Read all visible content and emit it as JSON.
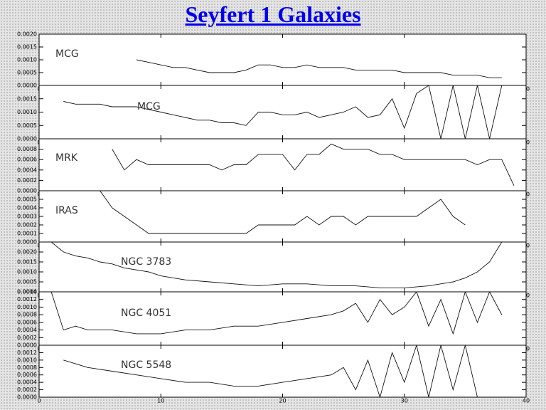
{
  "title": "Seyfert 1 Galaxies",
  "chart_data": [
    {
      "type": "line",
      "label": "MCG",
      "xlim": [
        0,
        40
      ],
      "xticks": [
        0,
        10,
        20,
        30,
        40
      ],
      "ylim": [
        0,
        0.002
      ],
      "yticks": [
        {
          "value": 0,
          "label": "0.0000"
        },
        {
          "value": 0.0005,
          "label": "0.0005"
        },
        {
          "value": 0.001,
          "label": "0.0010"
        },
        {
          "value": 0.0015,
          "label": "0.0015"
        },
        {
          "value": 0.002,
          "label": "0.0020"
        }
      ],
      "x": [
        8,
        9,
        10,
        11,
        12,
        13,
        14,
        15,
        16,
        17,
        18,
        19,
        20,
        21,
        22,
        23,
        24,
        25,
        26,
        27,
        28,
        29,
        30,
        31,
        32,
        33,
        34,
        35,
        36,
        37,
        38
      ],
      "values": [
        0.001,
        0.0009,
        0.0008,
        0.0007,
        0.0007,
        0.0006,
        0.0005,
        0.0005,
        0.0005,
        0.0006,
        0.0008,
        0.0008,
        0.0007,
        0.0007,
        0.0008,
        0.0007,
        0.0007,
        0.0007,
        0.0006,
        0.0006,
        0.0006,
        0.0006,
        0.0005,
        0.0005,
        0.0005,
        0.0005,
        0.0004,
        0.0004,
        0.0004,
        0.0003,
        0.0003
      ]
    },
    {
      "type": "line",
      "label": "MCG",
      "xlim": [
        0,
        40
      ],
      "xticks": [
        0,
        10,
        20,
        30,
        40
      ],
      "ylim": [
        0,
        0.002
      ],
      "yticks": [
        {
          "value": 0,
          "label": "0.0000"
        },
        {
          "value": 0.0005,
          "label": "0.0005"
        },
        {
          "value": 0.001,
          "label": "0.0010"
        },
        {
          "value": 0.0015,
          "label": "0.0015"
        }
      ],
      "x": [
        2,
        3,
        4,
        5,
        6,
        7,
        8,
        9,
        10,
        11,
        12,
        13,
        14,
        15,
        16,
        17,
        18,
        19,
        20,
        21,
        22,
        23,
        24,
        25,
        26,
        27,
        28,
        29,
        30,
        31,
        32,
        33,
        34,
        35,
        36,
        37,
        38
      ],
      "values": [
        0.0014,
        0.0013,
        0.0013,
        0.0013,
        0.0012,
        0.0012,
        0.0012,
        0.0011,
        0.001,
        0.0009,
        0.0008,
        0.0007,
        0.0007,
        0.0006,
        0.0006,
        0.0005,
        0.001,
        0.001,
        0.0009,
        0.0009,
        0.001,
        0.0008,
        0.0009,
        0.001,
        0.0012,
        0.0008,
        0.0009,
        0.0015,
        0.0004,
        0.0017,
        0.002,
        0,
        0.002,
        0,
        0.002,
        0,
        0.002
      ]
    },
    {
      "type": "line",
      "label": "MRK",
      "xlim": [
        0,
        40
      ],
      "xticks": [
        0,
        10,
        20,
        30,
        40
      ],
      "ylim": [
        0,
        0.001
      ],
      "yticks": [
        {
          "value": 0,
          "label": "0.0000"
        },
        {
          "value": 0.0002,
          "label": "0.0002"
        },
        {
          "value": 0.0004,
          "label": "0.0004"
        },
        {
          "value": 0.0006,
          "label": "0.0006"
        },
        {
          "value": 0.0008,
          "label": "0.0008"
        }
      ],
      "x": [
        6,
        7,
        8,
        9,
        10,
        11,
        12,
        13,
        14,
        15,
        16,
        17,
        18,
        19,
        20,
        21,
        22,
        23,
        24,
        25,
        26,
        27,
        28,
        29,
        30,
        31,
        32,
        33,
        34,
        35,
        36,
        37,
        38,
        39
      ],
      "values": [
        0.0008,
        0.0004,
        0.0006,
        0.0005,
        0.0005,
        0.0005,
        0.0005,
        0.0005,
        0.0005,
        0.0004,
        0.0005,
        0.0005,
        0.0007,
        0.0007,
        0.0007,
        0.0004,
        0.0007,
        0.0007,
        0.0009,
        0.0008,
        0.0008,
        0.0008,
        0.0007,
        0.0007,
        0.0006,
        0.0006,
        0.0006,
        0.0006,
        0.0006,
        0.0006,
        0.0005,
        0.0006,
        0.0006,
        0.0001
      ]
    },
    {
      "type": "line",
      "label": "IRAS",
      "xlim": [
        0,
        40
      ],
      "xticks": [
        0,
        10,
        20,
        30,
        40
      ],
      "ylim": [
        0,
        0.0006
      ],
      "yticks": [
        {
          "value": 0,
          "label": "0.0000"
        },
        {
          "value": 0.0001,
          "label": "0.0001"
        },
        {
          "value": 0.0002,
          "label": "0.0002"
        },
        {
          "value": 0.0003,
          "label": "0.0003"
        },
        {
          "value": 0.0004,
          "label": "0.0004"
        },
        {
          "value": 0.0005,
          "label": "0.0005"
        }
      ],
      "x": [
        5,
        6,
        7,
        8,
        9,
        10,
        11,
        12,
        13,
        14,
        15,
        16,
        17,
        18,
        19,
        20,
        21,
        22,
        23,
        24,
        25,
        26,
        27,
        28,
        29,
        30,
        31,
        32,
        33,
        34,
        35
      ],
      "values": [
        0.0006,
        0.0004,
        0.0003,
        0.0002,
        0.0001,
        0.0001,
        0.0001,
        0.0001,
        0.0001,
        0.0001,
        0.0001,
        0.0001,
        0.0001,
        0.0002,
        0.0002,
        0.0002,
        0.0002,
        0.0003,
        0.0002,
        0.0003,
        0.0003,
        0.0002,
        0.0003,
        0.0003,
        0.0003,
        0.0003,
        0.0003,
        0.0004,
        0.0005,
        0.0003,
        0.0002
      ]
    },
    {
      "type": "line",
      "label": "NGC 3783",
      "xlim": [
        0,
        40
      ],
      "xticks": [
        0,
        10,
        20,
        30,
        40
      ],
      "ylim": [
        0,
        0.0025
      ],
      "yticks": [
        {
          "value": 0,
          "label": "0.0000"
        },
        {
          "value": 0.0005,
          "label": "0.0005"
        },
        {
          "value": 0.001,
          "label": "0.0010"
        },
        {
          "value": 0.0015,
          "label": "0.0015"
        },
        {
          "value": 0.002,
          "label": "0.0020"
        }
      ],
      "x": [
        1,
        2,
        3,
        4,
        5,
        6,
        7,
        8,
        9,
        10,
        12,
        14,
        16,
        18,
        20,
        22,
        24,
        26,
        28,
        30,
        32,
        34,
        35,
        36,
        37,
        38
      ],
      "values": [
        0.0025,
        0.002,
        0.0018,
        0.0017,
        0.0015,
        0.0014,
        0.0012,
        0.0011,
        0.001,
        0.0008,
        0.0006,
        0.0005,
        0.0004,
        0.0003,
        0.0004,
        0.0004,
        0.0003,
        0.0003,
        0.0002,
        0.0002,
        0.0003,
        0.0005,
        0.0007,
        0.001,
        0.0015,
        0.0025
      ]
    },
    {
      "type": "line",
      "label": "NGC 4051",
      "xlim": [
        0,
        40
      ],
      "xticks": [
        0,
        10,
        20,
        30,
        40
      ],
      "ylim": [
        0,
        0.0014
      ],
      "yticks": [
        {
          "value": 0,
          "label": "0.0000"
        },
        {
          "value": 0.0002,
          "label": "0.0002"
        },
        {
          "value": 0.0004,
          "label": "0.0004"
        },
        {
          "value": 0.0006,
          "label": "0.0006"
        },
        {
          "value": 0.0008,
          "label": "0.0008"
        },
        {
          "value": 0.001,
          "label": "0.0010"
        },
        {
          "value": 0.0012,
          "label": "0.0012"
        },
        {
          "value": 0.0014,
          "label": "0.0014"
        }
      ],
      "x": [
        1,
        2,
        3,
        4,
        6,
        8,
        10,
        12,
        14,
        16,
        18,
        20,
        22,
        24,
        25,
        26,
        27,
        28,
        29,
        30,
        31,
        32,
        33,
        34,
        35,
        36,
        37,
        38
      ],
      "values": [
        0.0014,
        0.0004,
        0.0005,
        0.0004,
        0.0004,
        0.0003,
        0.0003,
        0.0004,
        0.0004,
        0.0005,
        0.0005,
        0.0006,
        0.0007,
        0.0008,
        0.0009,
        0.0011,
        0.0006,
        0.0012,
        0.0008,
        0.001,
        0.0014,
        0.0005,
        0.0012,
        0.0003,
        0.0014,
        0.0006,
        0.0014,
        0.0008
      ]
    },
    {
      "type": "line",
      "label": "NGC 5548",
      "xlim": [
        0,
        40
      ],
      "xticks": [
        0,
        10,
        20,
        30,
        40
      ],
      "ylim": [
        0,
        0.0014
      ],
      "yticks": [
        {
          "value": 0,
          "label": "0.0000"
        },
        {
          "value": 0.0002,
          "label": "0.0002"
        },
        {
          "value": 0.0004,
          "label": "0.0004"
        },
        {
          "value": 0.0006,
          "label": "0.0006"
        },
        {
          "value": 0.0008,
          "label": "0.0008"
        },
        {
          "value": 0.001,
          "label": "0.0010"
        },
        {
          "value": 0.0012,
          "label": "0.0012"
        }
      ],
      "x": [
        2,
        3,
        4,
        6,
        8,
        10,
        12,
        14,
        16,
        18,
        20,
        22,
        24,
        25,
        26,
        27,
        28,
        29,
        30,
        31,
        32,
        33,
        34,
        35,
        36
      ],
      "values": [
        0.001,
        0.0009,
        0.0008,
        0.0007,
        0.0006,
        0.0005,
        0.0004,
        0.0004,
        0.0003,
        0.0003,
        0.0004,
        0.0005,
        0.0006,
        0.0008,
        0.0002,
        0.001,
        0,
        0.0012,
        0.0004,
        0.0014,
        0,
        0.0014,
        0.0002,
        0.0014,
        0
      ]
    }
  ]
}
